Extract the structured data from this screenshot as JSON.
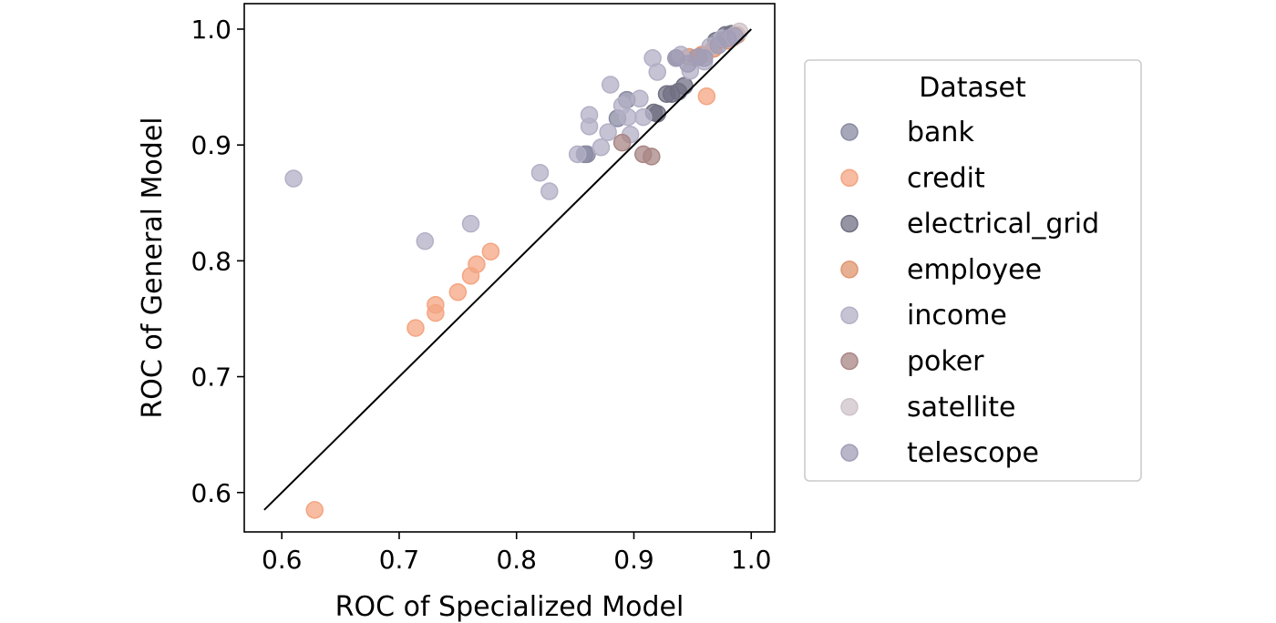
{
  "chart_data": {
    "type": "scatter",
    "title": "",
    "xlabel": "ROC of Specialized Model",
    "ylabel": "ROC of General Model",
    "xlim": [
      0.568,
      1.02
    ],
    "ylim": [
      0.566,
      1.022
    ],
    "xticks": [
      0.6,
      0.7,
      0.8,
      0.9,
      1.0
    ],
    "yticks": [
      0.6,
      0.7,
      0.8,
      0.9,
      1.0
    ],
    "xtick_labels": [
      "0.6",
      "0.7",
      "0.8",
      "0.9",
      "1.0"
    ],
    "ytick_labels": [
      "0.6",
      "0.7",
      "0.8",
      "0.9",
      "1.0"
    ],
    "grid": false,
    "reference_line": {
      "x": [
        0.585,
        1.0
      ],
      "y": [
        0.585,
        1.0
      ]
    },
    "legend": {
      "title": "Dataset",
      "placement": "outside-right"
    },
    "series": [
      {
        "name": "bank",
        "color": "#8a8aa3",
        "points": [
          [
            0.894,
            0.939
          ],
          [
            0.886,
            0.923
          ],
          [
            0.858,
            0.892
          ],
          [
            0.86,
            0.892
          ]
        ]
      },
      {
        "name": "credit",
        "color": "#f4a582",
        "points": [
          [
            0.628,
            0.585
          ],
          [
            0.714,
            0.742
          ],
          [
            0.731,
            0.762
          ],
          [
            0.731,
            0.755
          ],
          [
            0.75,
            0.773
          ],
          [
            0.761,
            0.787
          ],
          [
            0.766,
            0.797
          ],
          [
            0.778,
            0.808
          ],
          [
            0.962,
            0.942
          ],
          [
            0.96,
            0.978
          ],
          [
            0.985,
            0.993
          ]
        ]
      },
      {
        "name": "electrical_grid",
        "color": "#717083",
        "points": [
          [
            0.917,
            0.928
          ],
          [
            0.92,
            0.927
          ],
          [
            0.928,
            0.944
          ],
          [
            0.932,
            0.944
          ],
          [
            0.938,
            0.946
          ],
          [
            0.943,
            0.951
          ],
          [
            0.936,
            0.975
          ],
          [
            0.953,
            0.975
          ],
          [
            0.97,
            0.99
          ],
          [
            0.978,
            0.995
          ],
          [
            0.983,
            0.996
          ]
        ]
      },
      {
        "name": "employee",
        "color": "#e0956f",
        "points": [
          [
            0.947,
            0.976
          ],
          [
            0.958,
            0.978
          ],
          [
            0.968,
            0.983
          ],
          [
            0.98,
            0.99
          ],
          [
            0.988,
            0.995
          ]
        ]
      },
      {
        "name": "income",
        "color": "#b3b0c6",
        "points": [
          [
            0.61,
            0.871
          ],
          [
            0.722,
            0.817
          ],
          [
            0.761,
            0.832
          ],
          [
            0.82,
            0.876
          ],
          [
            0.828,
            0.86
          ],
          [
            0.852,
            0.892
          ],
          [
            0.862,
            0.916
          ],
          [
            0.862,
            0.926
          ],
          [
            0.872,
            0.898
          ],
          [
            0.88,
            0.952
          ],
          [
            0.878,
            0.911
          ],
          [
            0.89,
            0.934
          ],
          [
            0.895,
            0.924
          ],
          [
            0.897,
            0.909
          ],
          [
            0.905,
            0.94
          ],
          [
            0.908,
            0.924
          ],
          [
            0.916,
            0.975
          ],
          [
            0.92,
            0.963
          ],
          [
            0.94,
            0.978
          ],
          [
            0.948,
            0.964
          ],
          [
            0.96,
            0.972
          ],
          [
            0.965,
            0.985
          ],
          [
            0.975,
            0.992
          ]
        ]
      },
      {
        "name": "poker",
        "color": "#a98686",
        "points": [
          [
            0.89,
            0.902
          ],
          [
            0.908,
            0.892
          ],
          [
            0.915,
            0.89
          ]
        ]
      },
      {
        "name": "satellite",
        "color": "#cfc3cb",
        "points": [
          [
            0.99,
            0.998
          ],
          [
            0.985,
            0.994
          ]
        ]
      },
      {
        "name": "telescope",
        "color": "#a19db7",
        "points": [
          [
            0.936,
            0.975
          ],
          [
            0.946,
            0.97
          ],
          [
            0.955,
            0.976
          ],
          [
            0.96,
            0.975
          ],
          [
            0.972,
            0.986
          ],
          [
            0.98,
            0.992
          ],
          [
            0.986,
            0.994
          ]
        ]
      }
    ]
  }
}
